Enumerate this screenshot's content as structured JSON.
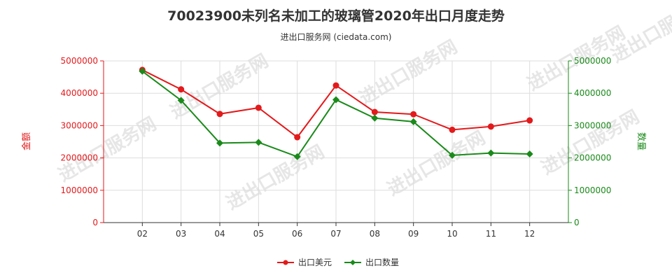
{
  "title": "70023900未列名未加工的玻璃管2020年出口月度走势",
  "subtitle": "进出口服务网 (ciedata.com)",
  "watermark": "进出口服务网",
  "chart_data": {
    "type": "line",
    "categories": [
      "02",
      "03",
      "04",
      "05",
      "06",
      "07",
      "08",
      "09",
      "10",
      "11",
      "12"
    ],
    "y_left": {
      "label": "金额",
      "ylim": [
        0,
        5000000
      ],
      "ticks": [
        "0",
        "1000000",
        "2000000",
        "3000000",
        "4000000",
        "5000000"
      ],
      "color": "#e31a1c"
    },
    "y_right": {
      "label": "数量",
      "ylim": [
        0,
        5000000
      ],
      "ticks": [
        "0",
        "1000000",
        "2000000",
        "3000000",
        "4000000",
        "5000000"
      ],
      "color": "#1a8a1a"
    },
    "series": [
      {
        "name": "出口美元",
        "axis": "left",
        "color": "#e31a1c",
        "marker": "circle",
        "values": [
          4720000,
          4120000,
          3360000,
          3550000,
          2640000,
          4240000,
          3420000,
          3350000,
          2870000,
          2970000,
          3160000
        ]
      },
      {
        "name": "出口数量",
        "axis": "right",
        "color": "#1a8a1a",
        "marker": "diamond",
        "values": [
          4680000,
          3780000,
          2460000,
          2480000,
          2040000,
          3800000,
          3230000,
          3120000,
          2080000,
          2150000,
          2120000
        ]
      }
    ],
    "grid": true,
    "legend": "bottom-center"
  }
}
